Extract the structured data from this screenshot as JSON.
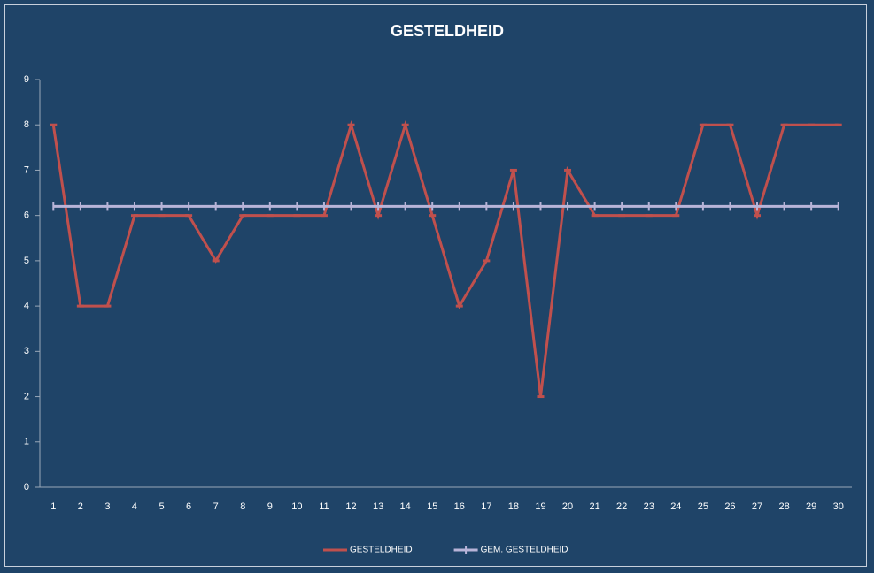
{
  "chart_data": {
    "type": "line",
    "title": "GESTELDHEID",
    "categories": [
      "1",
      "2",
      "3",
      "4",
      "5",
      "6",
      "7",
      "8",
      "9",
      "10",
      "11",
      "12",
      "13",
      "14",
      "15",
      "16",
      "17",
      "18",
      "19",
      "20",
      "21",
      "22",
      "23",
      "24",
      "25",
      "26",
      "27",
      "28",
      "29",
      "30"
    ],
    "series": [
      {
        "name": "GESTELDHEID",
        "color": "#c0504d",
        "values": [
          8,
          4,
          4,
          6,
          6,
          6,
          5,
          6,
          6,
          6,
          6,
          8,
          6,
          8,
          6,
          4,
          5,
          7,
          2,
          7,
          6,
          6,
          6,
          6,
          8,
          8,
          6,
          8,
          8,
          8
        ]
      },
      {
        "name": "GEM. GESTELDHEID",
        "color": "#b8b4d8",
        "values": [
          6.2,
          6.2,
          6.2,
          6.2,
          6.2,
          6.2,
          6.2,
          6.2,
          6.2,
          6.2,
          6.2,
          6.2,
          6.2,
          6.2,
          6.2,
          6.2,
          6.2,
          6.2,
          6.2,
          6.2,
          6.2,
          6.2,
          6.2,
          6.2,
          6.2,
          6.2,
          6.2,
          6.2,
          6.2,
          6.2
        ]
      }
    ],
    "ylim": [
      0,
      9
    ],
    "yticks": [
      0,
      1,
      2,
      3,
      4,
      5,
      6,
      7,
      8,
      9
    ],
    "grid": false,
    "legend": "bottom"
  }
}
